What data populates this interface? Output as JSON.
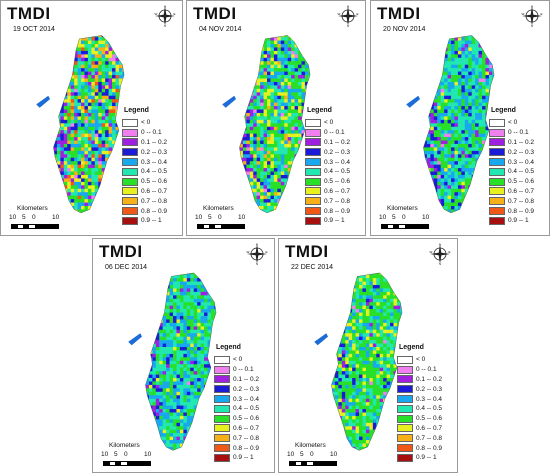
{
  "panels": [
    {
      "title": "TMDI",
      "date": "19 OCT 2014",
      "variant": "drier"
    },
    {
      "title": "TMDI",
      "date": "04 NOV 2014",
      "variant": "mixed"
    },
    {
      "title": "TMDI",
      "date": "20 NOV 2014",
      "variant": "wet"
    },
    {
      "title": "TMDI",
      "date": "06 DEC 2014",
      "variant": "wet2"
    },
    {
      "title": "TMDI",
      "date": "22 DEC 2014",
      "variant": "green"
    }
  ],
  "legend": {
    "title": "Legend",
    "classes": [
      {
        "label": "< 0",
        "color": "#ffffff"
      },
      {
        "label": "0 -- 0.1",
        "color": "#f07ff0"
      },
      {
        "label": "0.1 -- 0.2",
        "color": "#a020e0"
      },
      {
        "label": "0.2 -- 0.3",
        "color": "#1c1cd8"
      },
      {
        "label": "0.3 -- 0.4",
        "color": "#18a8f0"
      },
      {
        "label": "0.4 -- 0.5",
        "color": "#20e8b0"
      },
      {
        "label": "0.5 -- 0.6",
        "color": "#28e028"
      },
      {
        "label": "0.6 -- 0.7",
        "color": "#e8f020"
      },
      {
        "label": "0.7 -- 0.8",
        "color": "#f8b018"
      },
      {
        "label": "0.8 -- 0.9",
        "color": "#f05818"
      },
      {
        "label": "0.9 -- 1",
        "color": "#a81010"
      }
    ]
  },
  "scalebar": {
    "title": "Kilometers",
    "ticks": [
      "10",
      "5",
      "0",
      "10"
    ]
  },
  "compass": {
    "icon": "north-arrow-compass-icon",
    "labels": [
      "N",
      "E",
      "S",
      "W"
    ]
  }
}
